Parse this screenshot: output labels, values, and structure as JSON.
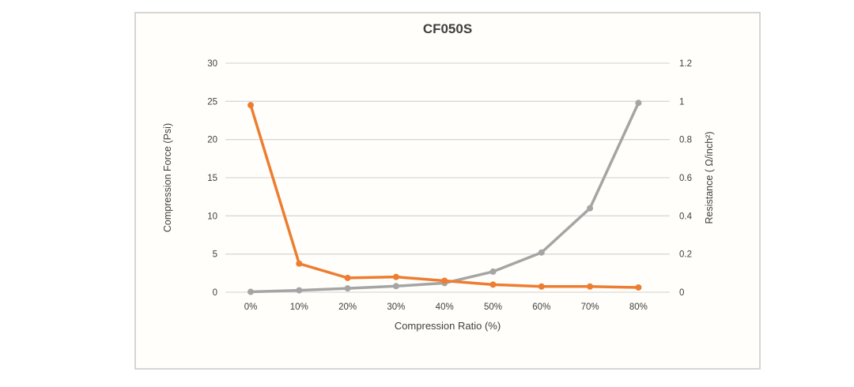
{
  "colors": {
    "force_series": "#A5A5A5",
    "resistance_series": "#ED7D31",
    "gridline": "#D9D9D9",
    "text": "#404040",
    "card_border": "#D7D5D2",
    "card_background": "#FFFEFA"
  },
  "chart_data": {
    "type": "line",
    "title": "CF050S",
    "xlabel": "Compression Ratio (%)",
    "ylabel_left": "Compression Force (Psi)",
    "ylabel_right": "Resistance ( Ω/inch²)",
    "categories": [
      "0%",
      "10%",
      "20%",
      "30%",
      "40%",
      "50%",
      "60%",
      "70%",
      "80%"
    ],
    "series": [
      {
        "name": "Compression Force",
        "axis": "left",
        "color": "#A5A5A5",
        "values": [
          0.05,
          0.25,
          0.5,
          0.8,
          1.2,
          2.7,
          5.2,
          11,
          24.8
        ]
      },
      {
        "name": "Resistance",
        "axis": "right",
        "color": "#ED7D31",
        "values": [
          0.98,
          0.15,
          0.075,
          0.08,
          0.06,
          0.04,
          0.03,
          0.03,
          0.025
        ]
      }
    ],
    "y_axis_left": {
      "min": 0,
      "max": 30,
      "step": 5,
      "ticks": [
        "0",
        "5",
        "10",
        "15",
        "20",
        "25",
        "30"
      ]
    },
    "y_axis_right": {
      "min": 0,
      "max": 1.2,
      "step": 0.2,
      "ticks": [
        "0",
        "0.2",
        "0.4",
        "0.6",
        "0.8",
        "1",
        "1.2"
      ]
    },
    "grid": true,
    "legend_position": "none"
  }
}
